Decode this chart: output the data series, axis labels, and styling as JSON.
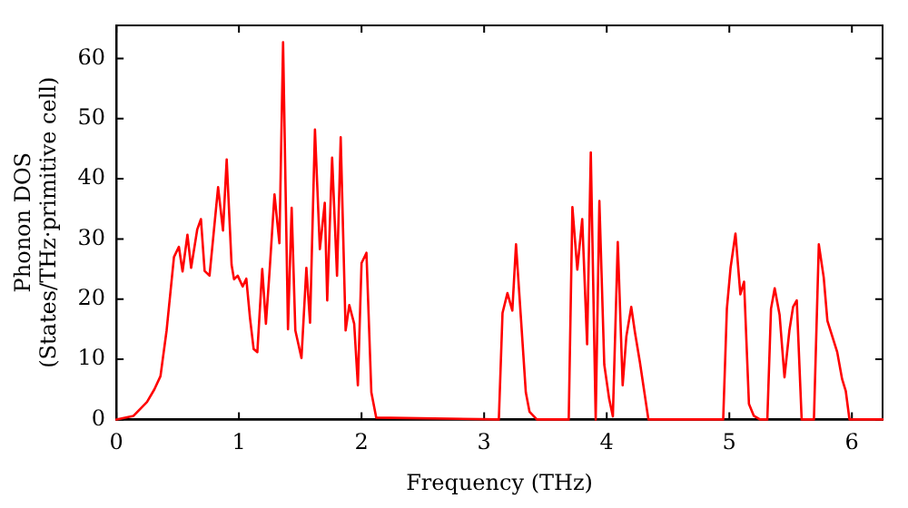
{
  "chart_data": {
    "type": "line",
    "xlabel": "Frequency (THz)",
    "ylabel": "Phonon DOS\n(States/THz·primitive cell)",
    "xlim": [
      0,
      6.25
    ],
    "xticks": [
      0,
      1,
      2,
      3,
      4,
      5,
      6
    ],
    "ylim": [
      0,
      65.5
    ],
    "yticks": [
      0,
      10,
      20,
      30,
      40,
      50,
      60
    ],
    "marker": "none",
    "line_style": "solid",
    "series": [
      {
        "color": "#ff0000",
        "x": [
          0,
          0.14,
          0.25,
          0.31,
          0.36,
          0.41,
          0.47,
          0.51,
          0.54,
          0.58,
          0.61,
          0.66,
          0.69,
          0.72,
          0.76,
          0.83,
          0.87,
          0.9,
          0.94,
          0.96,
          0.99,
          1.03,
          1.06,
          1.09,
          1.12,
          1.15,
          1.19,
          1.22,
          1.25,
          1.29,
          1.33,
          1.36,
          1.4,
          1.43,
          1.46,
          1.51,
          1.55,
          1.58,
          1.62,
          1.66,
          1.7,
          1.72,
          1.76,
          1.8,
          1.83,
          1.87,
          1.9,
          1.94,
          1.97,
          2,
          2.04,
          2.08,
          2.12,
          3.12,
          3.15,
          3.19,
          3.23,
          3.26,
          3.3,
          3.34,
          3.37,
          3.43,
          3.69,
          3.72,
          3.76,
          3.8,
          3.84,
          3.87,
          3.91,
          3.94,
          3.98,
          4.02,
          4.05,
          4.09,
          4.13,
          4.16,
          4.2,
          4.23,
          4.27,
          4.34,
          4.95,
          4.98,
          5.01,
          5.05,
          5.09,
          5.12,
          5.16,
          5.2,
          5.25,
          5.31,
          5.34,
          5.37,
          5.41,
          5.45,
          5.49,
          5.52,
          5.55,
          5.59,
          5.69,
          5.73,
          5.77,
          5.8,
          5.84,
          5.88,
          5.92,
          5.95,
          5.98,
          6.25
        ],
        "values": [
          0,
          0.6,
          2.9,
          5,
          7.2,
          14.8,
          27,
          28.7,
          24.6,
          30.7,
          25.2,
          31.6,
          33.3,
          24.7,
          23.9,
          38.6,
          31.4,
          43.2,
          25.7,
          23.3,
          23.9,
          22.1,
          23.4,
          16.9,
          11.7,
          11.2,
          25,
          15.9,
          24.7,
          37.4,
          29.3,
          62.7,
          15,
          35.2,
          14.8,
          10.2,
          25.2,
          16.1,
          48.2,
          28.3,
          36,
          19.8,
          43.5,
          23.9,
          46.9,
          14.8,
          19,
          15.9,
          5.7,
          26,
          27.7,
          4.5,
          0.3,
          0,
          17.7,
          21,
          18.1,
          29.1,
          16.9,
          4.5,
          1.3,
          0,
          0,
          35.3,
          24.9,
          33.3,
          12.5,
          44.4,
          0,
          36.3,
          9.1,
          3.4,
          0.5,
          29.5,
          5.7,
          13.8,
          18.7,
          14.5,
          9.6,
          0,
          0,
          18.4,
          25.2,
          30.9,
          20.8,
          22.9,
          2.6,
          0.6,
          0,
          0,
          18.4,
          21.8,
          17.4,
          7,
          14.8,
          18.7,
          19.8,
          0,
          0,
          29.1,
          23.6,
          16.4,
          13.8,
          11.2,
          6.7,
          4.7,
          0,
          0
        ]
      }
    ]
  }
}
